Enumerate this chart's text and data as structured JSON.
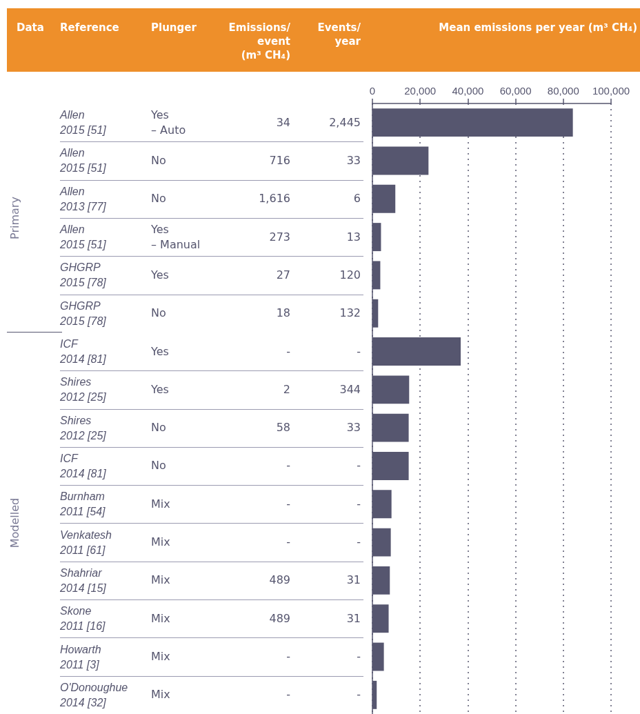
{
  "chart_data": {
    "type": "bar",
    "orientation": "horizontal",
    "xlabel": "Mean emissions per year (m³ CH₄)",
    "ylabel": "Reference",
    "categories": [
      "Allen\n2015 [51]",
      "Allen\n2015 [51]",
      "Allen\n2013 [77]",
      "Allen\n2015 [51]",
      "GHGRP\n2015 [78]",
      "GHGRP\n2015 [78]",
      "ICF\n2014 [81]",
      "Shires\n2012 [25]",
      "Shires\n2012 [25]",
      "ICF\n2014 [81]",
      "Burnham\n2011 [54]",
      "Venkatesh\n2011 [61]",
      "Shahriar\n2014 [15]",
      "Skone\n2011 [16]",
      "Howarth\n2011 [3]",
      "O'Donoughue\n2014 [32]"
    ],
    "series": [
      {
        "axis": "x2",
        "color": "#56566f",
        "values": [
          84000,
          23500,
          9600,
          3600,
          3300,
          2400,
          37000,
          15400,
          15200,
          15200,
          8000,
          7700,
          7300,
          6800,
          4800,
          1800
        ]
      }
    ],
    "x2lim": [
      0,
      100000
    ],
    "x2ticks": [
      {
        "value": 0,
        "label": "0"
      },
      {
        "value": 20000,
        "label": "20,000"
      },
      {
        "value": 40000,
        "label": "40,000"
      },
      {
        "value": 60000,
        "label": "60,000"
      },
      {
        "value": 80000,
        "label": "80,000"
      },
      {
        "value": 100000,
        "label": "100,000"
      }
    ],
    "grid": "x",
    "annotations": [
      "Data",
      "Plunger",
      "Emissions/\nevent\n(m³ CH₄)",
      "Events/\nyear",
      "Primary",
      "Modelled",
      "Yes\n– Auto",
      "34",
      "2,445",
      "No",
      "716",
      "33",
      "No",
      "1,616",
      "6",
      "Yes\n– Manual",
      "273",
      "13",
      "Yes",
      "27",
      "120",
      "No",
      "18",
      "132",
      "Yes",
      "-",
      "-",
      "Yes",
      "2",
      "344",
      "No",
      "58",
      "33",
      "No",
      "-",
      "-",
      "Mix",
      "-",
      "-",
      "Mix",
      "-",
      "-",
      "Mix",
      "489",
      "31",
      "Mix",
      "489",
      "31",
      "Mix",
      "-",
      "-",
      "Mix",
      "-",
      "-"
    ]
  }
}
